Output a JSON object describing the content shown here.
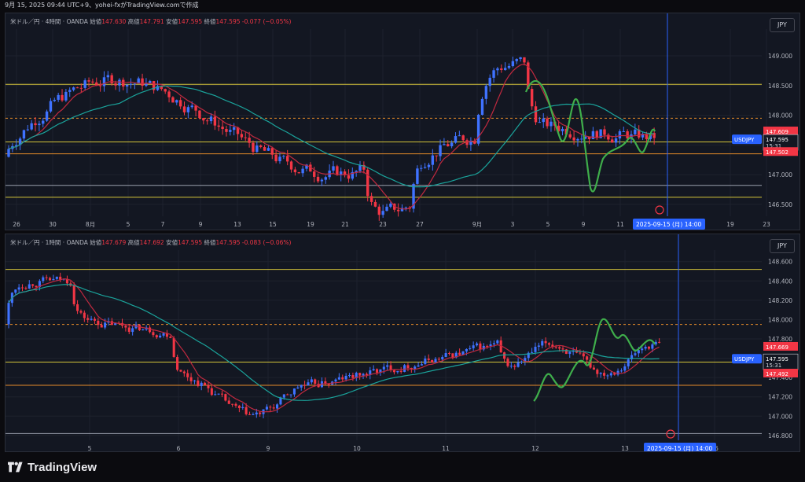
{
  "header": {
    "text": "9月 15, 2025 09:44 UTC+9、yohei-fxがTradingView.comで作成"
  },
  "colors": {
    "bg": "#131722",
    "grid": "#1e222d",
    "up": "#3f72ff",
    "down": "#f23645",
    "accent": "#2962ff",
    "yellow": "#d4c43a",
    "orange": "#e58b2a",
    "ma_red": "#c0293f",
    "ma_teal": "#1aa39b",
    "green": "#3fae4b"
  },
  "panel1": {
    "info": {
      "title": "米ドル／円 · 4時間 · OANDA",
      "o_label": "始値",
      "o": "147.630",
      "h_label": "高値",
      "h": "147.791",
      "l_label": "安値",
      "l": "147.595",
      "c_label": "終値",
      "c": "147.595",
      "chg": "-0.077 (−0.05%)"
    },
    "currency": "JPY",
    "y_ticks": [
      "149.000",
      "148.500",
      "148.000",
      "147.500",
      "147.000",
      "146.500"
    ],
    "x_ticks": [
      "26",
      "30",
      "8月",
      "5",
      "7",
      "9",
      "13",
      "15",
      "19",
      "21",
      "23",
      "27",
      "9月",
      "3",
      "5",
      "9",
      "11",
      "19",
      "23"
    ],
    "markers": {
      "symbol": "USDJPY",
      "high": "147.609",
      "price": "147.595",
      "countdown": "15:31",
      "low": "147.502"
    },
    "cursor_date": "2025-09-15 (月)",
    "cursor_time": "14:00"
  },
  "panel2": {
    "info": {
      "title": "米ドル／円 · 1時間 · OANDA",
      "o_label": "始値",
      "o": "147.679",
      "h_label": "高値",
      "h": "147.692",
      "l_label": "安値",
      "l": "147.595",
      "c_label": "終値",
      "c": "147.595",
      "chg": "-0.083 (−0.06%)"
    },
    "currency": "JPY",
    "y_ticks": [
      "148.600",
      "148.400",
      "148.200",
      "148.000",
      "147.800",
      "147.600",
      "147.400",
      "147.200",
      "147.000",
      "146.800"
    ],
    "x_ticks": [
      "5",
      "6",
      "9",
      "10",
      "11",
      "12",
      "13",
      "16"
    ],
    "markers": {
      "symbol": "USDJPY",
      "high": "147.669",
      "price": "147.595",
      "countdown": "15:31",
      "low": "147.492"
    },
    "cursor_date": "2025-09-15 (月)",
    "cursor_time": "14:00"
  },
  "footer": {
    "brand": "TradingView"
  }
}
